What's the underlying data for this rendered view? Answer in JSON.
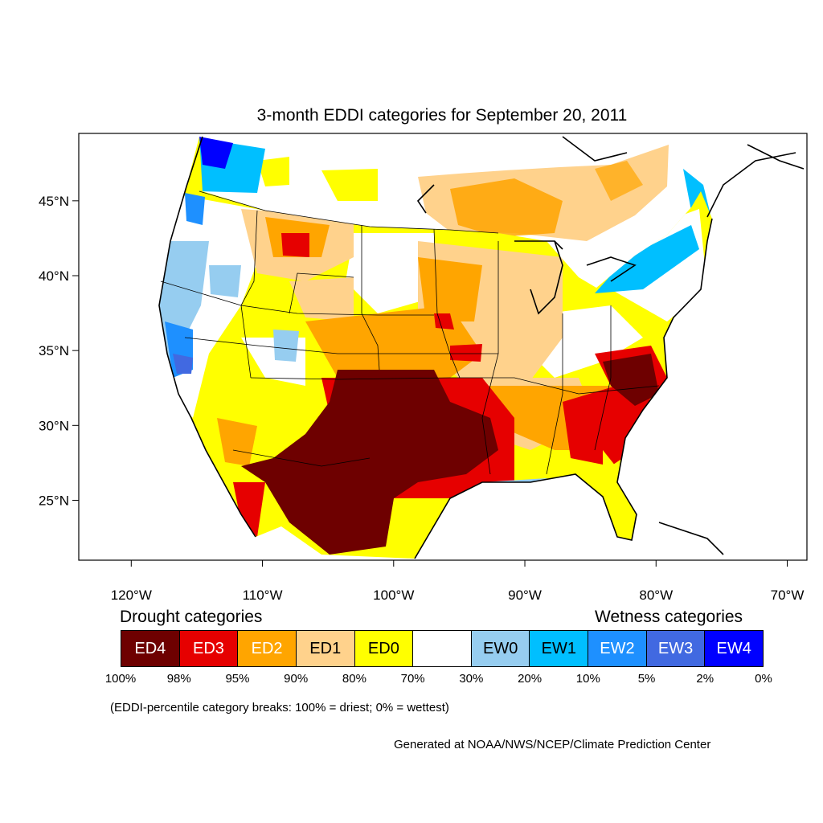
{
  "title": "3-month EDDI categories for September 20, 2011",
  "map": {
    "lon_range": [
      -124,
      -68.5
    ],
    "lat_range": [
      21,
      49.5
    ],
    "lat_ticks": [
      {
        "value": 45,
        "label": "45°N"
      },
      {
        "value": 40,
        "label": "40°N"
      },
      {
        "value": 35,
        "label": "35°N"
      },
      {
        "value": 30,
        "label": "30°N"
      },
      {
        "value": 25,
        "label": "25°N"
      }
    ],
    "lon_ticks": [
      {
        "value": -120,
        "label": "120°W"
      },
      {
        "value": -110,
        "label": "110°W"
      },
      {
        "value": -100,
        "label": "100°W"
      },
      {
        "value": -90,
        "label": "90°W"
      },
      {
        "value": -80,
        "label": "80°W"
      },
      {
        "value": -70,
        "label": "70°W"
      }
    ]
  },
  "legend": {
    "drought_heading": "Drought categories",
    "wetness_heading": "Wetness categories",
    "categories": [
      {
        "label": "ED4",
        "color": "#6e0000",
        "text_color": "#ffffff"
      },
      {
        "label": "ED3",
        "color": "#e60000",
        "text_color": "#ffffff"
      },
      {
        "label": "ED2",
        "color": "#ffa500",
        "text_color": "#ffffff"
      },
      {
        "label": "ED1",
        "color": "#ffd28c",
        "text_color": "#000000"
      },
      {
        "label": "ED0",
        "color": "#ffff00",
        "text_color": "#000000"
      },
      {
        "label": "",
        "color": "#ffffff",
        "text_color": "#000000"
      },
      {
        "label": "EW0",
        "color": "#96cdf0",
        "text_color": "#000000"
      },
      {
        "label": "EW1",
        "color": "#00bfff",
        "text_color": "#000000"
      },
      {
        "label": "EW2",
        "color": "#1e90ff",
        "text_color": "#ffffff"
      },
      {
        "label": "EW3",
        "color": "#4169e1",
        "text_color": "#ffffff"
      },
      {
        "label": "EW4",
        "color": "#0000ff",
        "text_color": "#ffffff"
      }
    ],
    "breaks": [
      "100%",
      "98%",
      "95%",
      "90%",
      "80%",
      "70%",
      "30%",
      "20%",
      "10%",
      "5%",
      "2%",
      "0%"
    ]
  },
  "note": "(EDDI-percentile category breaks: 100% = driest; 0% = wettest)",
  "credit": "Generated at NOAA/NWS/NCEP/Climate Prediction Center"
}
